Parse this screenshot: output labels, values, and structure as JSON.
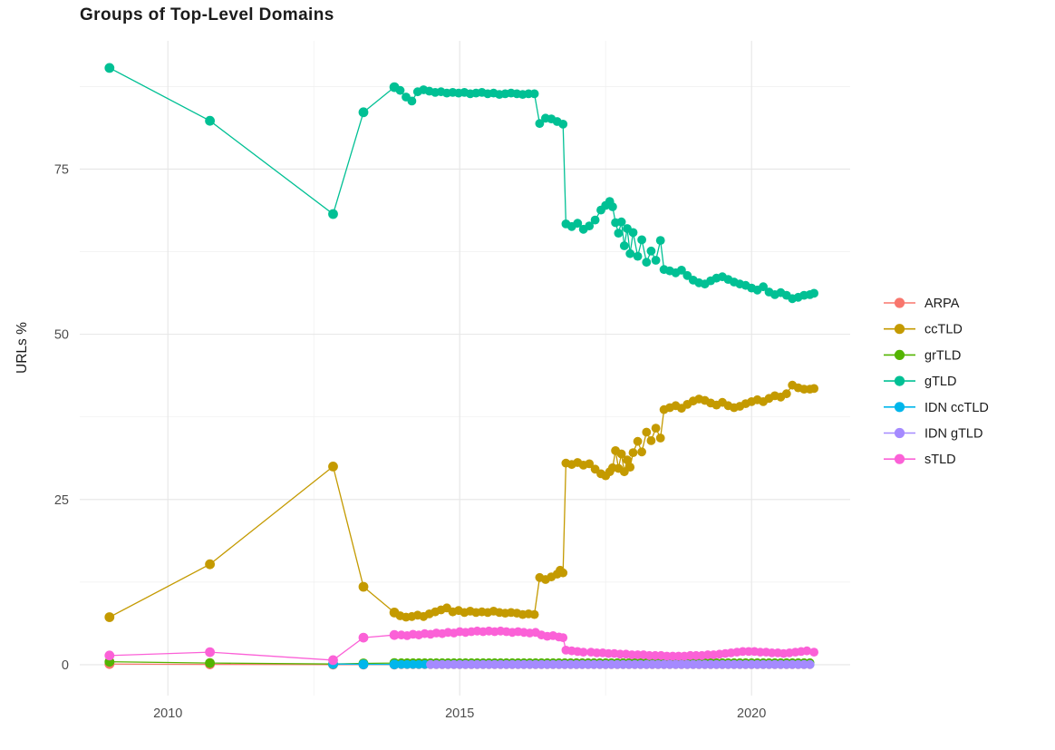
{
  "page": {
    "background": "#ffffff"
  },
  "chart_data": {
    "type": "line",
    "marker": "point",
    "title": "Groups of Top-Level Domains",
    "xlabel": "",
    "ylabel": "URLs %",
    "grid": true,
    "legend_position": "right",
    "xlim": [
      2008.49,
      2021.69
    ],
    "ylim": [
      -4.67,
      94.41
    ],
    "x_ticks": [
      2010,
      2015,
      2020
    ],
    "x_minor_ticks": [
      2012.5,
      2017.5
    ],
    "y_ticks": [
      0,
      25,
      50,
      75
    ],
    "y_minor_ticks": [
      12.5,
      37.5,
      62.5,
      87.5
    ],
    "colors": {
      "grid_major": "#e6e6e6",
      "grid_minor": "#efefef",
      "tick_text": "#4d4d4d",
      "legend_text": "#1a1a1a",
      "title_text": "#1b1b1b"
    },
    "series": [
      {
        "name": "ARPA",
        "color": "#F8766D",
        "points": [
          [
            2009.0,
            0.1
          ],
          [
            2010.72,
            0.05
          ],
          [
            2012.83,
            0.03
          ],
          [
            2013.35,
            0.03
          ],
          [
            2013.88,
            0.02
          ]
        ],
        "flat_segment": {
          "start": 2014.0,
          "end": 2021.07,
          "step": 0.1,
          "value": 0.02
        }
      },
      {
        "name": "ccTLD",
        "color": "#C49A00",
        "points": [
          [
            2009.0,
            7.2
          ],
          [
            2010.72,
            15.2
          ],
          [
            2012.83,
            30.0
          ],
          [
            2013.35,
            11.8
          ],
          [
            2013.88,
            7.9
          ],
          [
            2013.98,
            7.4
          ],
          [
            2014.08,
            7.2
          ],
          [
            2014.18,
            7.3
          ],
          [
            2014.28,
            7.5
          ],
          [
            2014.38,
            7.3
          ],
          [
            2014.48,
            7.7
          ],
          [
            2014.58,
            8.0
          ],
          [
            2014.68,
            8.3
          ],
          [
            2014.78,
            8.6
          ],
          [
            2014.88,
            8.0
          ],
          [
            2014.98,
            8.2
          ],
          [
            2015.08,
            7.9
          ],
          [
            2015.18,
            8.1
          ],
          [
            2015.28,
            7.9
          ],
          [
            2015.38,
            8.0
          ],
          [
            2015.48,
            7.9
          ],
          [
            2015.58,
            8.1
          ],
          [
            2015.68,
            7.9
          ],
          [
            2015.78,
            7.8
          ],
          [
            2015.88,
            7.9
          ],
          [
            2015.98,
            7.8
          ],
          [
            2016.08,
            7.6
          ],
          [
            2016.18,
            7.7
          ],
          [
            2016.28,
            7.6
          ],
          [
            2016.37,
            13.2
          ],
          [
            2016.47,
            12.9
          ],
          [
            2016.57,
            13.3
          ],
          [
            2016.67,
            13.7
          ],
          [
            2016.72,
            14.3
          ],
          [
            2016.77,
            13.9
          ],
          [
            2016.82,
            30.5
          ],
          [
            2016.92,
            30.3
          ],
          [
            2017.02,
            30.6
          ],
          [
            2017.12,
            30.2
          ],
          [
            2017.22,
            30.4
          ],
          [
            2017.32,
            29.6
          ],
          [
            2017.42,
            28.9
          ],
          [
            2017.5,
            28.6
          ],
          [
            2017.57,
            29.2
          ],
          [
            2017.62,
            29.8
          ],
          [
            2017.67,
            32.4
          ],
          [
            2017.72,
            29.7
          ],
          [
            2017.77,
            31.9
          ],
          [
            2017.82,
            29.2
          ],
          [
            2017.87,
            31.0
          ],
          [
            2017.92,
            29.9
          ],
          [
            2017.97,
            32.1
          ],
          [
            2018.05,
            33.8
          ],
          [
            2018.12,
            32.2
          ],
          [
            2018.2,
            35.2
          ],
          [
            2018.28,
            33.9
          ],
          [
            2018.36,
            35.8
          ],
          [
            2018.44,
            34.3
          ],
          [
            2018.5,
            38.6
          ],
          [
            2018.6,
            38.9
          ],
          [
            2018.7,
            39.2
          ],
          [
            2018.8,
            38.8
          ],
          [
            2018.9,
            39.4
          ],
          [
            2019.0,
            39.9
          ],
          [
            2019.1,
            40.2
          ],
          [
            2019.2,
            40.0
          ],
          [
            2019.3,
            39.6
          ],
          [
            2019.4,
            39.3
          ],
          [
            2019.5,
            39.7
          ],
          [
            2019.6,
            39.2
          ],
          [
            2019.7,
            38.9
          ],
          [
            2019.8,
            39.1
          ],
          [
            2019.9,
            39.5
          ],
          [
            2020.0,
            39.8
          ],
          [
            2020.1,
            40.1
          ],
          [
            2020.2,
            39.8
          ],
          [
            2020.3,
            40.3
          ],
          [
            2020.4,
            40.7
          ],
          [
            2020.5,
            40.5
          ],
          [
            2020.6,
            41.0
          ],
          [
            2020.7,
            42.3
          ],
          [
            2020.8,
            41.9
          ],
          [
            2020.9,
            41.7
          ],
          [
            2021.0,
            41.7
          ],
          [
            2021.07,
            41.8
          ]
        ]
      },
      {
        "name": "grTLD",
        "color": "#53B400",
        "points": [
          [
            2009.0,
            0.45
          ],
          [
            2010.72,
            0.25
          ],
          [
            2012.83,
            0.1
          ],
          [
            2013.35,
            0.2
          ],
          [
            2013.88,
            0.25
          ]
        ],
        "flat_segment": {
          "start": 2014.0,
          "end": 2021.07,
          "step": 0.1,
          "value": 0.3
        }
      },
      {
        "name": "gTLD",
        "color": "#00C094",
        "points": [
          [
            2009.0,
            90.3
          ],
          [
            2010.72,
            82.3
          ],
          [
            2012.83,
            68.2
          ],
          [
            2013.35,
            83.6
          ],
          [
            2013.88,
            87.4
          ],
          [
            2013.98,
            86.9
          ],
          [
            2014.08,
            85.9
          ],
          [
            2014.18,
            85.3
          ],
          [
            2014.28,
            86.7
          ],
          [
            2014.38,
            87.0
          ],
          [
            2014.48,
            86.8
          ],
          [
            2014.58,
            86.6
          ],
          [
            2014.68,
            86.7
          ],
          [
            2014.78,
            86.5
          ],
          [
            2014.88,
            86.6
          ],
          [
            2014.98,
            86.5
          ],
          [
            2015.08,
            86.6
          ],
          [
            2015.18,
            86.4
          ],
          [
            2015.28,
            86.5
          ],
          [
            2015.38,
            86.6
          ],
          [
            2015.48,
            86.4
          ],
          [
            2015.58,
            86.5
          ],
          [
            2015.68,
            86.3
          ],
          [
            2015.78,
            86.4
          ],
          [
            2015.88,
            86.5
          ],
          [
            2015.98,
            86.4
          ],
          [
            2016.08,
            86.3
          ],
          [
            2016.18,
            86.4
          ],
          [
            2016.28,
            86.4
          ],
          [
            2016.37,
            81.9
          ],
          [
            2016.47,
            82.7
          ],
          [
            2016.57,
            82.6
          ],
          [
            2016.67,
            82.2
          ],
          [
            2016.77,
            81.8
          ],
          [
            2016.82,
            66.7
          ],
          [
            2016.92,
            66.3
          ],
          [
            2017.02,
            66.8
          ],
          [
            2017.12,
            65.9
          ],
          [
            2017.22,
            66.4
          ],
          [
            2017.32,
            67.3
          ],
          [
            2017.42,
            68.8
          ],
          [
            2017.5,
            69.5
          ],
          [
            2017.57,
            70.1
          ],
          [
            2017.62,
            69.3
          ],
          [
            2017.67,
            66.9
          ],
          [
            2017.72,
            65.3
          ],
          [
            2017.77,
            67.0
          ],
          [
            2017.82,
            63.4
          ],
          [
            2017.87,
            66.0
          ],
          [
            2017.92,
            62.2
          ],
          [
            2017.97,
            65.4
          ],
          [
            2018.05,
            61.8
          ],
          [
            2018.12,
            64.3
          ],
          [
            2018.2,
            60.9
          ],
          [
            2018.28,
            62.6
          ],
          [
            2018.36,
            61.2
          ],
          [
            2018.44,
            64.2
          ],
          [
            2018.5,
            59.8
          ],
          [
            2018.6,
            59.6
          ],
          [
            2018.7,
            59.3
          ],
          [
            2018.8,
            59.7
          ],
          [
            2018.9,
            58.9
          ],
          [
            2019.0,
            58.2
          ],
          [
            2019.1,
            57.8
          ],
          [
            2019.2,
            57.6
          ],
          [
            2019.3,
            58.1
          ],
          [
            2019.4,
            58.5
          ],
          [
            2019.5,
            58.7
          ],
          [
            2019.6,
            58.3
          ],
          [
            2019.7,
            57.9
          ],
          [
            2019.8,
            57.6
          ],
          [
            2019.9,
            57.4
          ],
          [
            2020.0,
            57.0
          ],
          [
            2020.1,
            56.7
          ],
          [
            2020.2,
            57.2
          ],
          [
            2020.3,
            56.4
          ],
          [
            2020.4,
            56.0
          ],
          [
            2020.5,
            56.3
          ],
          [
            2020.6,
            55.9
          ],
          [
            2020.7,
            55.4
          ],
          [
            2020.8,
            55.6
          ],
          [
            2020.9,
            55.9
          ],
          [
            2021.0,
            56.0
          ],
          [
            2021.07,
            56.2
          ]
        ]
      },
      {
        "name": "IDN ccTLD",
        "color": "#00B6EB",
        "points": [
          [
            2012.83,
            0.1
          ],
          [
            2013.35,
            0.06
          ],
          [
            2013.88,
            0.05
          ]
        ],
        "flat_segment": {
          "start": 2014.0,
          "end": 2021.07,
          "step": 0.1,
          "value": 0.05
        }
      },
      {
        "name": "IDN gTLD",
        "color": "#A58AFF",
        "points": [],
        "flat_segment": {
          "start": 2014.5,
          "end": 2021.07,
          "step": 0.1,
          "value": 0.04
        }
      },
      {
        "name": "sTLD",
        "color": "#FB61D7",
        "points": [
          [
            2009.0,
            1.4
          ],
          [
            2010.72,
            1.9
          ],
          [
            2012.83,
            0.7
          ],
          [
            2013.35,
            4.1
          ],
          [
            2013.88,
            4.5
          ],
          [
            2014.0,
            4.5
          ],
          [
            2014.1,
            4.4
          ],
          [
            2014.2,
            4.6
          ],
          [
            2014.3,
            4.5
          ],
          [
            2014.4,
            4.7
          ],
          [
            2014.5,
            4.6
          ],
          [
            2014.6,
            4.8
          ],
          [
            2014.7,
            4.7
          ],
          [
            2014.8,
            4.9
          ],
          [
            2014.9,
            4.8
          ],
          [
            2015.0,
            5.0
          ],
          [
            2015.1,
            4.9
          ],
          [
            2015.2,
            5.0
          ],
          [
            2015.3,
            5.1
          ],
          [
            2015.4,
            5.0
          ],
          [
            2015.5,
            5.1
          ],
          [
            2015.6,
            5.0
          ],
          [
            2015.7,
            5.1
          ],
          [
            2015.8,
            5.0
          ],
          [
            2015.9,
            4.9
          ],
          [
            2016.0,
            5.0
          ],
          [
            2016.1,
            4.9
          ],
          [
            2016.2,
            4.8
          ],
          [
            2016.3,
            4.9
          ],
          [
            2016.4,
            4.5
          ],
          [
            2016.5,
            4.3
          ],
          [
            2016.6,
            4.4
          ],
          [
            2016.7,
            4.2
          ],
          [
            2016.77,
            4.1
          ],
          [
            2016.82,
            2.2
          ],
          [
            2016.92,
            2.1
          ],
          [
            2017.02,
            2.0
          ],
          [
            2017.12,
            1.9
          ],
          [
            2017.25,
            1.9
          ],
          [
            2017.35,
            1.8
          ],
          [
            2017.45,
            1.8
          ],
          [
            2017.55,
            1.7
          ],
          [
            2017.65,
            1.7
          ],
          [
            2017.75,
            1.6
          ],
          [
            2017.85,
            1.6
          ],
          [
            2017.95,
            1.5
          ],
          [
            2018.05,
            1.5
          ],
          [
            2018.15,
            1.5
          ],
          [
            2018.25,
            1.4
          ],
          [
            2018.35,
            1.4
          ],
          [
            2018.45,
            1.4
          ],
          [
            2018.55,
            1.3
          ],
          [
            2018.65,
            1.3
          ],
          [
            2018.75,
            1.3
          ],
          [
            2018.85,
            1.3
          ],
          [
            2018.95,
            1.4
          ],
          [
            2019.05,
            1.4
          ],
          [
            2019.15,
            1.4
          ],
          [
            2019.25,
            1.5
          ],
          [
            2019.35,
            1.5
          ],
          [
            2019.45,
            1.6
          ],
          [
            2019.55,
            1.7
          ],
          [
            2019.65,
            1.8
          ],
          [
            2019.75,
            1.9
          ],
          [
            2019.85,
            2.0
          ],
          [
            2019.95,
            2.0
          ],
          [
            2020.05,
            2.0
          ],
          [
            2020.15,
            1.9
          ],
          [
            2020.25,
            1.9
          ],
          [
            2020.35,
            1.8
          ],
          [
            2020.45,
            1.8
          ],
          [
            2020.55,
            1.7
          ],
          [
            2020.65,
            1.8
          ],
          [
            2020.75,
            1.9
          ],
          [
            2020.85,
            2.0
          ],
          [
            2020.95,
            2.1
          ],
          [
            2021.07,
            1.9
          ]
        ]
      }
    ]
  }
}
